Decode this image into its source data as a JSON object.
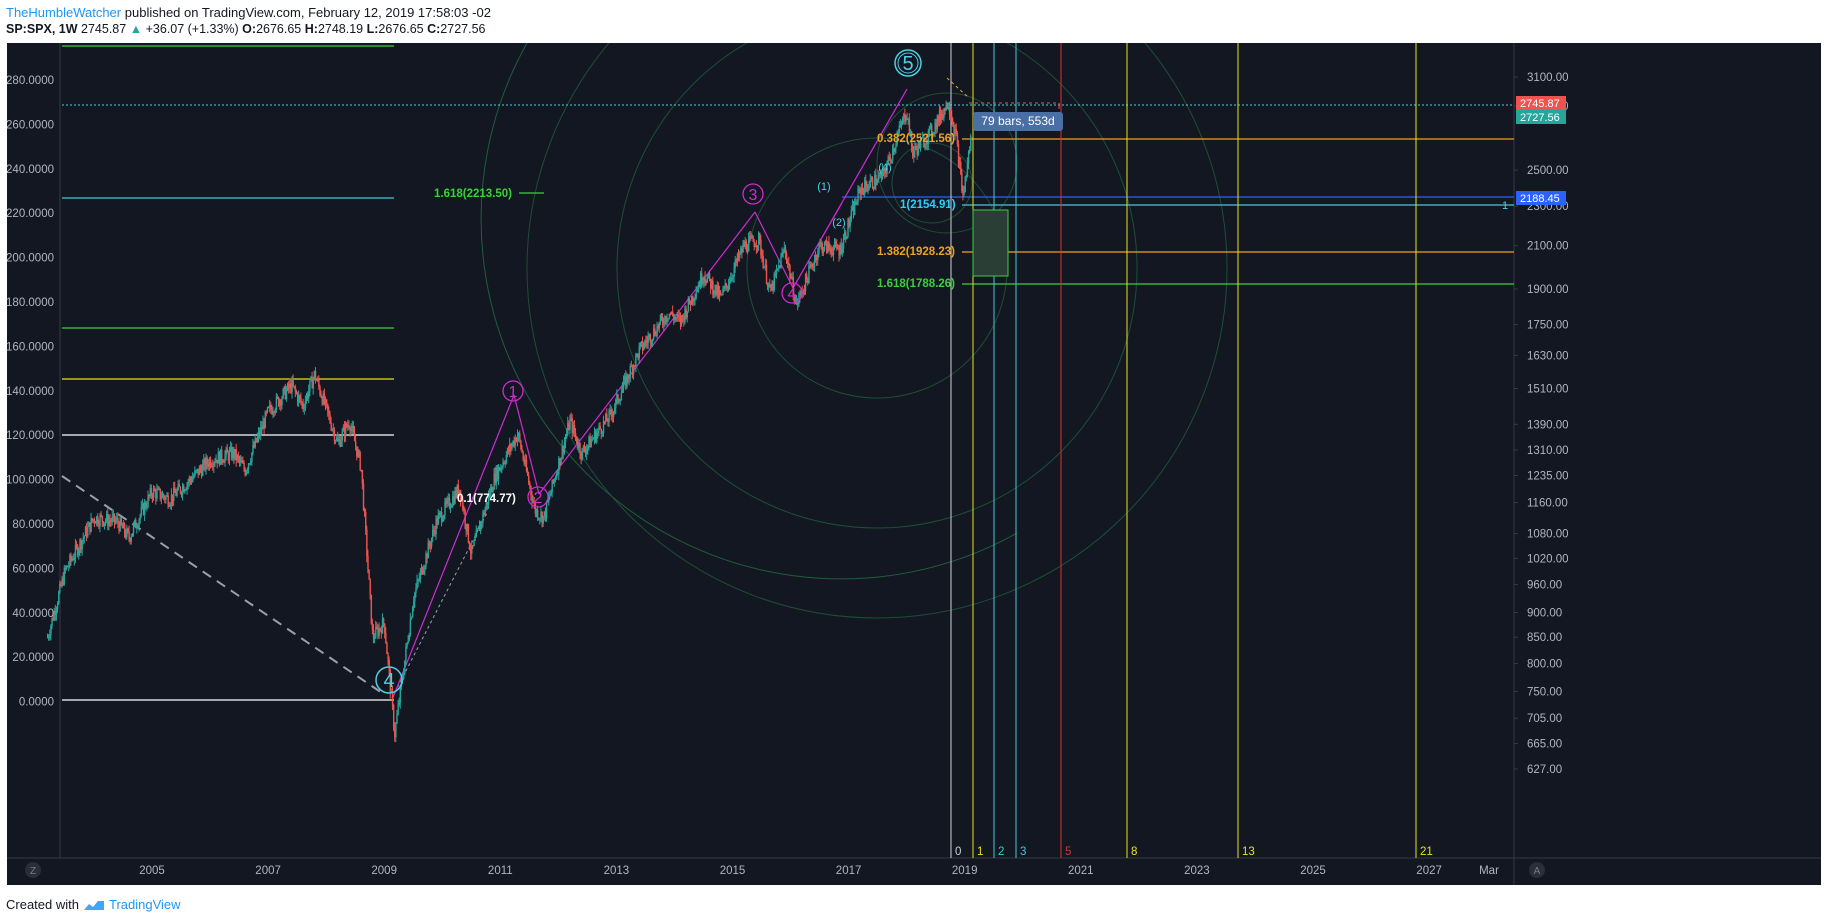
{
  "header": {
    "author": "TheHumbleWatcher",
    "published": "published on TradingView.com, February 12, 2019 17:58:03 -02",
    "symbol": "SP:SPX, 1W",
    "last": "2745.87",
    "change": "+36.07 (+1.33%)",
    "open_label": "O:",
    "open": "2676.65",
    "high_label": "H:",
    "high": "2748.19",
    "low_label": "L:",
    "low": "2676.65",
    "close_label": "C:",
    "close": "2727.56"
  },
  "footer": {
    "created_with": "Created with",
    "brand": "TradingView"
  },
  "corner_buttons": {
    "left": "Z",
    "right": "A"
  },
  "chart_data": {
    "type": "candlestick",
    "symbol": "SP:SPX",
    "interval": "1W",
    "left_axis": {
      "labels": [
        "280.0000",
        "260.0000",
        "240.0000",
        "220.0000",
        "200.0000",
        "180.0000",
        "160.0000",
        "140.0000",
        "120.0000",
        "100.0000",
        "80.0000",
        "60.0000",
        "40.0000",
        "20.0000",
        "0.0000"
      ],
      "range": [
        0,
        280
      ]
    },
    "right_axis": {
      "scale": "log",
      "labels": [
        "3100.00",
        "2900.00",
        "2500.00",
        "2300.00",
        "2100.00",
        "1900.00",
        "1750.00",
        "1630.00",
        "1510.00",
        "1390.00",
        "1310.00",
        "1235.00",
        "1160.00",
        "1080.00",
        "1020.00",
        "960.00",
        "900.00",
        "850.00",
        "800.00",
        "750.00",
        "705.00",
        "665.00",
        "627.00"
      ]
    },
    "x_axis": {
      "labels": [
        "2005",
        "2007",
        "2009",
        "2011",
        "2013",
        "2015",
        "2017",
        "2019",
        "2021",
        "2023",
        "2025",
        "2027",
        "Mar"
      ]
    },
    "price_tags": [
      {
        "value": "2745.87",
        "color": "#ef5350"
      },
      {
        "value": "2727.56",
        "color": "#26a69a"
      },
      {
        "value": "2188.45",
        "color": "#2962ff"
      }
    ],
    "close_series": [
      {
        "t": 2003.2,
        "v": 850
      },
      {
        "t": 2003.5,
        "v": 990
      },
      {
        "t": 2004.0,
        "v": 1120
      },
      {
        "t": 2004.4,
        "v": 1110
      },
      {
        "t": 2004.6,
        "v": 1070
      },
      {
        "t": 2005.0,
        "v": 1190
      },
      {
        "t": 2005.3,
        "v": 1170
      },
      {
        "t": 2005.7,
        "v": 1230
      },
      {
        "t": 2006.0,
        "v": 1280
      },
      {
        "t": 2006.4,
        "v": 1300
      },
      {
        "t": 2006.6,
        "v": 1250
      },
      {
        "t": 2007.0,
        "v": 1430
      },
      {
        "t": 2007.4,
        "v": 1520
      },
      {
        "t": 2007.6,
        "v": 1450
      },
      {
        "t": 2007.8,
        "v": 1560
      },
      {
        "t": 2008.2,
        "v": 1330
      },
      {
        "t": 2008.4,
        "v": 1400
      },
      {
        "t": 2008.6,
        "v": 1260
      },
      {
        "t": 2008.8,
        "v": 850
      },
      {
        "t": 2009.0,
        "v": 880
      },
      {
        "t": 2009.18,
        "v": 680
      },
      {
        "t": 2009.5,
        "v": 930
      },
      {
        "t": 2009.9,
        "v": 1110
      },
      {
        "t": 2010.3,
        "v": 1200
      },
      {
        "t": 2010.5,
        "v": 1030
      },
      {
        "t": 2010.9,
        "v": 1230
      },
      {
        "t": 2011.3,
        "v": 1360
      },
      {
        "t": 2011.6,
        "v": 1140
      },
      {
        "t": 2011.75,
        "v": 1120
      },
      {
        "t": 2012.2,
        "v": 1400
      },
      {
        "t": 2012.4,
        "v": 1300
      },
      {
        "t": 2012.9,
        "v": 1420
      },
      {
        "t": 2013.4,
        "v": 1650
      },
      {
        "t": 2013.9,
        "v": 1800
      },
      {
        "t": 2014.1,
        "v": 1760
      },
      {
        "t": 2014.5,
        "v": 1970
      },
      {
        "t": 2014.8,
        "v": 1860
      },
      {
        "t": 2015.2,
        "v": 2100
      },
      {
        "t": 2015.45,
        "v": 2130
      },
      {
        "t": 2015.65,
        "v": 1880
      },
      {
        "t": 2015.9,
        "v": 2090
      },
      {
        "t": 2016.1,
        "v": 1830
      },
      {
        "t": 2016.5,
        "v": 2100
      },
      {
        "t": 2016.85,
        "v": 2080
      },
      {
        "t": 2017.2,
        "v": 2390
      },
      {
        "t": 2017.6,
        "v": 2470
      },
      {
        "t": 2018.0,
        "v": 2870
      },
      {
        "t": 2018.1,
        "v": 2600
      },
      {
        "t": 2018.4,
        "v": 2720
      },
      {
        "t": 2018.72,
        "v": 2930
      },
      {
        "t": 2018.85,
        "v": 2700
      },
      {
        "t": 2018.97,
        "v": 2350
      },
      {
        "t": 2019.12,
        "v": 2727.56
      }
    ],
    "waves_primary": [
      {
        "label": "4",
        "t": 2009.18,
        "v": 666,
        "color": "#4dd0e1"
      },
      {
        "label": "5",
        "t": 2018.07,
        "v": 2870,
        "color": "#4dd0e1"
      }
    ],
    "waves_intermediate": [
      {
        "label": "1",
        "t": 2011.3,
        "v": 1370
      },
      {
        "label": "2",
        "t": 2011.75,
        "v": 1075
      },
      {
        "label": "3",
        "t": 2015.4,
        "v": 2135
      },
      {
        "label": "4",
        "t": 2016.1,
        "v": 1810
      }
    ],
    "waves_minor": [
      {
        "label": "(1)",
        "t": 2016.6,
        "v": 2180
      },
      {
        "label": "(2)",
        "t": 2016.9,
        "v": 2085
      },
      {
        "label": "(4)",
        "t": 2017.65,
        "v": 2400
      }
    ],
    "fib_labels": [
      {
        "text": "1.618(2213.50)",
        "color": "#3ccf3c"
      },
      {
        "text": "0.382(2521.56)",
        "color": "#f0a020"
      },
      {
        "text": "1(2154.91)",
        "color": "#29d0ff"
      },
      {
        "text": "1.382(1928.23)",
        "color": "#f0a020"
      },
      {
        "text": "1.618(1788.26)",
        "color": "#3ccf3c"
      },
      {
        "text": "0.1(774.77)",
        "color": "#ffffff"
      }
    ],
    "range_label": "79 bars, 553d",
    "fib_time_zones": [
      {
        "label": "0",
        "color": "#d0d0d0"
      },
      {
        "label": "1",
        "color": "#e8e020"
      },
      {
        "label": "2",
        "color": "#40c8d8"
      },
      {
        "label": "3",
        "color": "#40c8d8"
      },
      {
        "label": "5",
        "color": "#e03030"
      },
      {
        "label": "8",
        "color": "#e8e020"
      },
      {
        "label": "13",
        "color": "#e8e020"
      },
      {
        "label": "21",
        "color": "#e8e020"
      }
    ],
    "small_label_1": "1"
  }
}
